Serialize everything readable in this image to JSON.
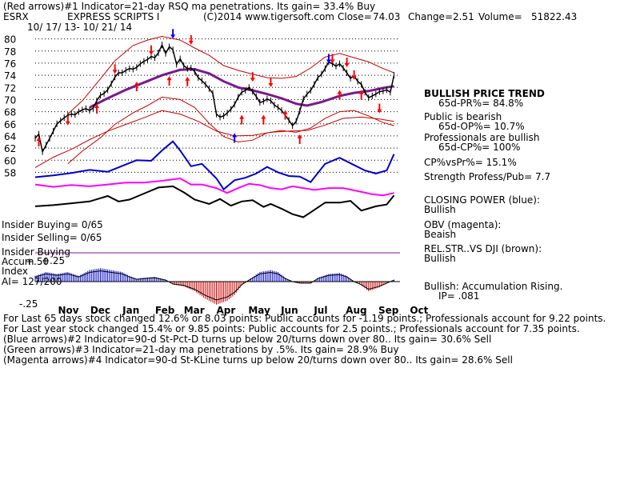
{
  "header": {
    "line1": "(Red arrows)#1 Indicator=21-day RSQ ma penetrations. Its gain= 33.4% Buy",
    "symbol": "ESRX",
    "company": "EXPRESS SCRIPTS I",
    "copyright": "(C)2014 www.tigersoft.com",
    "close_label": "Close=",
    "close": "74.03",
    "change_label": "Change=",
    "change": "2.51",
    "volume_label": "Volume=",
    "volume": "51822.43",
    "date_range": "10/ 17/ 13- 10/ 21/ 14"
  },
  "left_labels": {
    "insider_buying": "Insider Buying= 0/65",
    "insider_selling": "Insider Selling= 0/65",
    "insider_buying2": "Insider Buying",
    "plus50": "+.50",
    "accum": "Accum",
    "plus25": "+.25",
    "index": "Index",
    "ai": "AI= 127/200",
    "minus25": "-.25"
  },
  "right_panel": {
    "trend_title": "BULLISH PRICE TREND",
    "pr": "65d-PR%= 84.8%",
    "public_title": "Public is bearish",
    "op": "65d-OP%= 10.7%",
    "prof_title": "Professionals are bullish",
    "cp": "65d-CP%= 100%",
    "cpvspr": "CP%vsPr%= 15.1%",
    "strength": "Strength Profess/Pub= 7.7",
    "closing_power": "CLOSING POWER (blue):",
    "closing_power_val": "Bullish",
    "obv": "OBV (magenta):",
    "obv_val": "Beaish",
    "relstr": "REL.STR..VS DJI (brown):",
    "relstr_val": "Bullish",
    "accum": "Bullish: Accumulation Rising.",
    "ip": "IP= .081"
  },
  "footer": {
    "line1": "For Last 65 days stock changed  12.6% or  8.03 points:  Public accounts for -1.19 points.;  Professionals account for  9.22 points.",
    "line2": "For Last year stock changed  15.4% or  9.85 points:  Public accounts for  2.5 points.;  Professionals account for  7.35 points.",
    "line3": "(Blue arrows)#2 Indicator=90-d St-Pct-D turns up below 20/turns down over 80.. Its gain= 30.6% Sell",
    "line4": "(Green arrows)#3 Indicator=21-day ma penetrations by .5%. Its gain= 28.9% Buy",
    "line5": "(Magenta arrows)#4 Indicator=90-d St-KLine turns up below 20/turns down over 80.. Its gain= 28.6% Sell"
  },
  "chart_data": {
    "type": "line",
    "y_ticks": [
      58,
      60,
      62,
      64,
      66,
      68,
      70,
      72,
      74,
      76,
      78,
      80
    ],
    "ylim": [
      57,
      81
    ],
    "months": [
      "Nov",
      "Dec",
      "Jan",
      "Feb",
      "Mar",
      "Apr",
      "May",
      "Jun",
      "Jul",
      "Aug",
      "Sep",
      "Oct"
    ],
    "x_range": [
      0,
      100
    ],
    "month_positions": [
      8.5,
      17.4,
      26.3,
      35.3,
      43.2,
      52.2,
      61.0,
      70.0,
      79.1,
      87.9,
      96.9,
      105.6
    ],
    "price_close": [
      [
        0,
        63.6
      ],
      [
        1,
        64.3
      ],
      [
        2,
        61.4
      ],
      [
        3,
        62.5
      ],
      [
        4,
        63.6
      ],
      [
        5,
        64.8
      ],
      [
        6,
        66.0
      ],
      [
        7,
        66.5
      ],
      [
        8,
        67.0
      ],
      [
        9,
        67.4
      ],
      [
        10,
        67.6
      ],
      [
        11,
        67.5
      ],
      [
        12,
        68.0
      ],
      [
        13,
        68.3
      ],
      [
        14,
        68.5
      ],
      [
        15,
        68.2
      ],
      [
        16,
        68.6
      ],
      [
        17,
        69.8
      ],
      [
        18,
        70.7
      ],
      [
        19,
        71.0
      ],
      [
        20,
        71.6
      ],
      [
        21,
        72.6
      ],
      [
        22,
        73.7
      ],
      [
        23,
        74.4
      ],
      [
        24,
        74.4
      ],
      [
        25,
        74.8
      ],
      [
        26,
        75.1
      ],
      [
        27,
        75.0
      ],
      [
        28,
        75.3
      ],
      [
        29,
        75.9
      ],
      [
        30,
        76.3
      ],
      [
        31,
        76.6
      ],
      [
        32,
        77.1
      ],
      [
        33,
        76.9
      ],
      [
        34,
        77.7
      ],
      [
        35,
        79.0
      ],
      [
        36,
        77.6
      ],
      [
        37,
        78.7
      ],
      [
        38,
        78.2
      ],
      [
        39,
        75.8
      ],
      [
        40,
        76.7
      ],
      [
        41,
        75.6
      ],
      [
        42,
        75.1
      ],
      [
        43,
        75.2
      ],
      [
        44,
        74.6
      ],
      [
        45,
        73.6
      ],
      [
        46,
        73.1
      ],
      [
        47,
        72.5
      ],
      [
        48,
        71.8
      ],
      [
        49,
        71.0
      ],
      [
        50,
        67.6
      ],
      [
        51,
        67.1
      ],
      [
        52,
        67.3
      ],
      [
        53,
        67.8
      ],
      [
        54,
        68.4
      ],
      [
        55,
        69.2
      ],
      [
        56,
        70.4
      ],
      [
        57,
        71.2
      ],
      [
        58,
        71.5
      ],
      [
        59,
        72.0
      ],
      [
        60,
        71.3
      ],
      [
        61,
        70.5
      ],
      [
        62,
        69.5
      ],
      [
        63,
        69.7
      ],
      [
        64,
        70.1
      ],
      [
        65,
        69.8
      ],
      [
        66,
        69.1
      ],
      [
        67,
        68.7
      ],
      [
        68,
        68.2
      ],
      [
        69,
        67.4
      ],
      [
        70,
        66.6
      ],
      [
        71,
        65.7
      ],
      [
        72,
        66.4
      ],
      [
        73,
        68.1
      ],
      [
        74,
        70.1
      ],
      [
        75,
        70.9
      ],
      [
        76,
        71.5
      ],
      [
        77,
        72.5
      ],
      [
        78,
        73.6
      ],
      [
        79,
        74.2
      ],
      [
        80,
        75.1
      ],
      [
        81,
        76.2
      ],
      [
        82,
        75.9
      ],
      [
        83,
        75.5
      ],
      [
        84,
        75.9
      ],
      [
        85,
        75.2
      ],
      [
        86,
        74.4
      ],
      [
        87,
        73.5
      ],
      [
        88,
        73.9
      ],
      [
        89,
        73.0
      ],
      [
        90,
        72.5
      ],
      [
        91,
        71.2
      ],
      [
        92,
        70.3
      ],
      [
        93,
        70.6
      ],
      [
        94,
        70.9
      ],
      [
        95,
        71.3
      ],
      [
        96,
        71.4
      ],
      [
        97,
        71.6
      ],
      [
        98,
        71.2
      ],
      [
        99,
        74.0
      ]
    ],
    "ma21": [
      [
        15,
        68.7
      ],
      [
        20,
        70.2
      ],
      [
        25,
        71.6
      ],
      [
        30,
        72.8
      ],
      [
        35,
        74.0
      ],
      [
        40,
        74.9
      ],
      [
        44,
        75.0
      ],
      [
        48,
        74.3
      ],
      [
        52,
        73.0
      ],
      [
        56,
        72.0
      ],
      [
        60,
        71.5
      ],
      [
        64,
        70.9
      ],
      [
        68,
        70.2
      ],
      [
        72,
        69.3
      ],
      [
        75,
        69.0
      ],
      [
        79,
        69.6
      ],
      [
        84,
        70.6
      ],
      [
        88,
        71.1
      ],
      [
        92,
        71.4
      ],
      [
        96,
        71.9
      ],
      [
        99,
        72.2
      ]
    ],
    "upper_band": [
      [
        9,
        67.6
      ],
      [
        13,
        69.8
      ],
      [
        18,
        73.4
      ],
      [
        22,
        76.4
      ],
      [
        27,
        78.9
      ],
      [
        31,
        79.8
      ],
      [
        35,
        80.4
      ],
      [
        40,
        79.8
      ],
      [
        44,
        78.5
      ],
      [
        48,
        77.3
      ],
      [
        52,
        75.6
      ],
      [
        56,
        74.8
      ],
      [
        60,
        74.2
      ],
      [
        64,
        73.6
      ],
      [
        68,
        73.5
      ],
      [
        72,
        73.8
      ],
      [
        76,
        75.2
      ],
      [
        80,
        77.0
      ],
      [
        84,
        77.6
      ],
      [
        88,
        76.9
      ],
      [
        92,
        76.2
      ],
      [
        96,
        75.1
      ],
      [
        99,
        74.4
      ]
    ],
    "lower_band": [
      [
        9,
        59.4
      ],
      [
        13,
        61.5
      ],
      [
        18,
        63.7
      ],
      [
        22,
        65.9
      ],
      [
        27,
        67.8
      ],
      [
        31,
        69.0
      ],
      [
        35,
        70.4
      ],
      [
        40,
        70.0
      ],
      [
        44,
        68.7
      ],
      [
        48,
        66.1
      ],
      [
        52,
        63.9
      ],
      [
        56,
        63.0
      ],
      [
        60,
        63.3
      ],
      [
        64,
        64.5
      ],
      [
        68,
        64.9
      ],
      [
        72,
        64.6
      ],
      [
        76,
        65.3
      ],
      [
        80,
        66.9
      ],
      [
        84,
        68.0
      ],
      [
        88,
        68.2
      ],
      [
        92,
        67.3
      ],
      [
        96,
        66.2
      ],
      [
        99,
        65.7
      ]
    ],
    "lower_band2": [
      [
        0,
        58.8
      ],
      [
        5,
        60.5
      ],
      [
        10,
        61.8
      ],
      [
        15,
        63.4
      ],
      [
        20,
        64.8
      ],
      [
        25,
        65.9
      ],
      [
        30,
        67.0
      ],
      [
        35,
        68.2
      ],
      [
        40,
        67.6
      ],
      [
        45,
        66.4
      ],
      [
        50,
        64.8
      ],
      [
        55,
        64.0
      ],
      [
        60,
        64.1
      ],
      [
        65,
        64.6
      ],
      [
        70,
        64.8
      ],
      [
        75,
        64.9
      ],
      [
        80,
        65.8
      ],
      [
        85,
        66.9
      ],
      [
        90,
        67.1
      ],
      [
        95,
        66.8
      ],
      [
        99,
        66.4
      ]
    ],
    "closing_power": [
      [
        0,
        57.2
      ],
      [
        5,
        57.5
      ],
      [
        10,
        57.9
      ],
      [
        15,
        58.4
      ],
      [
        20,
        58.1
      ],
      [
        25,
        59.3
      ],
      [
        28,
        60.0
      ],
      [
        32,
        59.9
      ],
      [
        35,
        61.6
      ],
      [
        38,
        63.1
      ],
      [
        40,
        61.6
      ],
      [
        43,
        59.0
      ],
      [
        46,
        59.4
      ],
      [
        50,
        57.0
      ],
      [
        52,
        55.2
      ],
      [
        55,
        56.7
      ],
      [
        58,
        57.1
      ],
      [
        61,
        57.8
      ],
      [
        64,
        58.9
      ],
      [
        67,
        58.0
      ],
      [
        70,
        57.4
      ],
      [
        73,
        57.3
      ],
      [
        76,
        56.4
      ],
      [
        80,
        59.4
      ],
      [
        84,
        60.4
      ],
      [
        88,
        59.2
      ],
      [
        91,
        58.3
      ],
      [
        94,
        57.8
      ],
      [
        97,
        58.3
      ],
      [
        99,
        61.0
      ]
    ],
    "obv": [
      [
        0,
        56.0
      ],
      [
        5,
        55.6
      ],
      [
        10,
        55.9
      ],
      [
        15,
        55.7
      ],
      [
        20,
        56.0
      ],
      [
        25,
        56.3
      ],
      [
        30,
        56.3
      ],
      [
        35,
        56.6
      ],
      [
        40,
        57.0
      ],
      [
        43,
        56.0
      ],
      [
        46,
        56.0
      ],
      [
        50,
        55.4
      ],
      [
        53,
        54.6
      ],
      [
        56,
        55.4
      ],
      [
        59,
        56.1
      ],
      [
        62,
        55.9
      ],
      [
        65,
        55.4
      ],
      [
        68,
        55.2
      ],
      [
        71,
        55.7
      ],
      [
        74,
        55.4
      ],
      [
        77,
        55.1
      ],
      [
        81,
        55.4
      ],
      [
        85,
        55.4
      ],
      [
        89,
        54.9
      ],
      [
        93,
        54.4
      ],
      [
        96,
        54.2
      ],
      [
        99,
        54.6
      ]
    ],
    "rel_str": [
      [
        0,
        52.4
      ],
      [
        5,
        52.6
      ],
      [
        10,
        52.9
      ],
      [
        15,
        53.2
      ],
      [
        20,
        54.1
      ],
      [
        23,
        53.2
      ],
      [
        26,
        53.5
      ],
      [
        30,
        54.5
      ],
      [
        34,
        55.5
      ],
      [
        38,
        55.7
      ],
      [
        41,
        54.7
      ],
      [
        44,
        53.5
      ],
      [
        48,
        52.8
      ],
      [
        51,
        53.6
      ],
      [
        54,
        52.5
      ],
      [
        57,
        53.2
      ],
      [
        60,
        53.4
      ],
      [
        63,
        52.3
      ],
      [
        65,
        52.8
      ],
      [
        68,
        52.0
      ],
      [
        71,
        51.1
      ],
      [
        74,
        50.6
      ],
      [
        77,
        51.8
      ],
      [
        80,
        53.0
      ],
      [
        84,
        53.0
      ],
      [
        87,
        53.3
      ],
      [
        90,
        51.7
      ],
      [
        94,
        52.4
      ],
      [
        97,
        52.7
      ],
      [
        99,
        54.2
      ]
    ],
    "accum_index": [
      [
        0,
        0.06
      ],
      [
        3,
        0.1
      ],
      [
        6,
        0.08
      ],
      [
        9,
        0.1
      ],
      [
        12,
        0.06
      ],
      [
        15,
        0.12
      ],
      [
        18,
        0.14
      ],
      [
        21,
        0.12
      ],
      [
        24,
        0.1
      ],
      [
        26,
        0.06
      ],
      [
        28,
        0.03
      ],
      [
        30,
        0.04
      ],
      [
        33,
        0.05
      ],
      [
        36,
        0.02
      ],
      [
        38,
        -0.03
      ],
      [
        41,
        -0.05
      ],
      [
        44,
        -0.1
      ],
      [
        47,
        -0.18
      ],
      [
        50,
        -0.24
      ],
      [
        53,
        -0.2
      ],
      [
        55,
        -0.14
      ],
      [
        57,
        -0.04
      ],
      [
        59,
        0.02
      ],
      [
        62,
        0.1
      ],
      [
        65,
        0.12
      ],
      [
        67,
        0.1
      ],
      [
        69,
        0.04
      ],
      [
        71,
        0.0
      ],
      [
        73,
        -0.02
      ],
      [
        76,
        -0.02
      ],
      [
        78,
        0.04
      ],
      [
        81,
        0.08
      ],
      [
        84,
        0.09
      ],
      [
        86,
        0.06
      ],
      [
        88,
        0.0
      ],
      [
        90,
        -0.04
      ],
      [
        92,
        -0.1
      ],
      [
        95,
        -0.06
      ],
      [
        97,
        -0.02
      ],
      [
        99,
        0.02
      ]
    ],
    "arrows": [
      {
        "x": 1,
        "y": 63.6,
        "dir": "up",
        "color": "red"
      },
      {
        "x": 9,
        "y": 66.0,
        "dir": "down",
        "color": "red"
      },
      {
        "x": 17,
        "y": 69.0,
        "dir": "up",
        "color": "red"
      },
      {
        "x": 22,
        "y": 74.5,
        "dir": "down",
        "color": "red"
      },
      {
        "x": 28,
        "y": 72.7,
        "dir": "up",
        "color": "red"
      },
      {
        "x": 32,
        "y": 77.6,
        "dir": "down",
        "color": "red"
      },
      {
        "x": 37,
        "y": 73.6,
        "dir": "up",
        "color": "red"
      },
      {
        "x": 38,
        "y": 80.3,
        "dir": "down",
        "color": "blue"
      },
      {
        "x": 42,
        "y": 73.5,
        "dir": "up",
        "color": "red"
      },
      {
        "x": 43,
        "y": 79.3,
        "dir": "down",
        "color": "red"
      },
      {
        "x": 55,
        "y": 64.2,
        "dir": "up",
        "color": "blue"
      },
      {
        "x": 57,
        "y": 67.2,
        "dir": "up",
        "color": "red"
      },
      {
        "x": 60,
        "y": 73.2,
        "dir": "down",
        "color": "red"
      },
      {
        "x": 63,
        "y": 67.2,
        "dir": "up",
        "color": "red"
      },
      {
        "x": 65,
        "y": 72.3,
        "dir": "down",
        "color": "red"
      },
      {
        "x": 69,
        "y": 68.0,
        "dir": "up",
        "color": "red"
      },
      {
        "x": 73,
        "y": 64.0,
        "dir": "up",
        "color": "red"
      },
      {
        "x": 81,
        "y": 76.2,
        "dir": "down",
        "color": "blue"
      },
      {
        "x": 82,
        "y": 76.2,
        "dir": "down",
        "color": "red"
      },
      {
        "x": 84,
        "y": 71.3,
        "dir": "up",
        "color": "red"
      },
      {
        "x": 86,
        "y": 75.6,
        "dir": "down",
        "color": "red"
      },
      {
        "x": 88,
        "y": 73.5,
        "dir": "down",
        "color": "red"
      },
      {
        "x": 90,
        "y": 71.3,
        "dir": "up",
        "color": "red"
      },
      {
        "x": 95,
        "y": 68.0,
        "dir": "down",
        "color": "red"
      }
    ],
    "colors": {
      "price": "#000000",
      "ma21": "#7a1a8c",
      "bands": "#cc0000",
      "closing_power": "#0000cc",
      "obv": "#ff00ff",
      "rel_str": "#000000",
      "accum_pos": "#0000cc",
      "accum_neg": "#cc0000",
      "zero_line": "#7a1a8c",
      "gridline": "#000000"
    }
  }
}
